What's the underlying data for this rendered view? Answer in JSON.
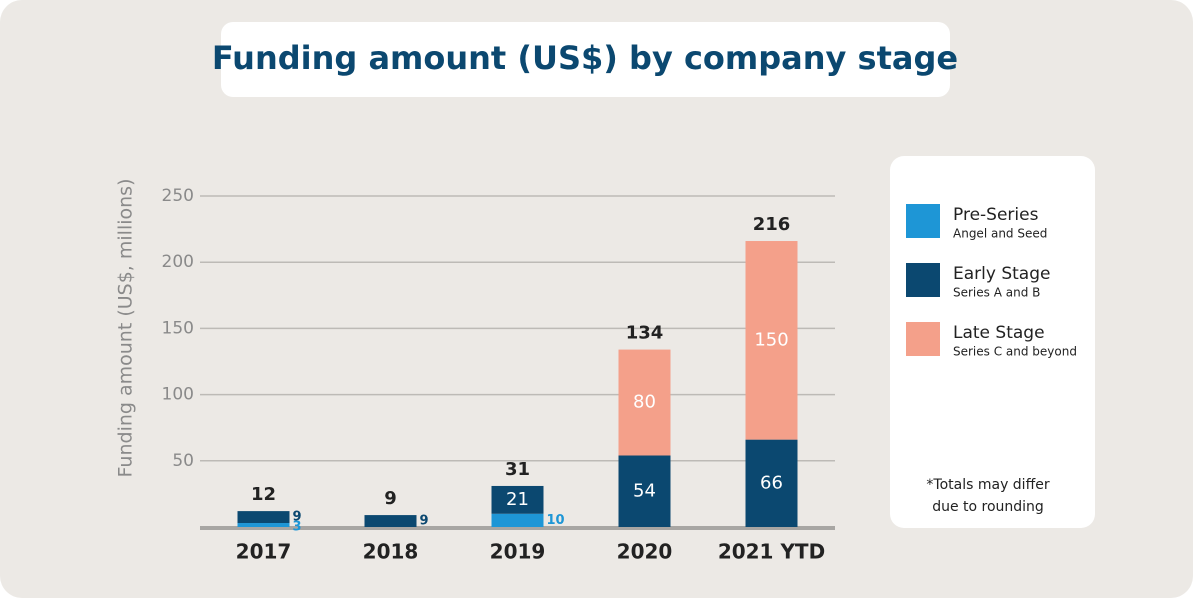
{
  "chart_data": {
    "type": "stacked_bar",
    "title": "Funding amount (US$) by company stage",
    "y_label": "Funding amount (US$, millions)",
    "categories": [
      "2017",
      "2018",
      "2019",
      "2020",
      "2021 YTD"
    ],
    "series": [
      {
        "name": "Pre-Series",
        "subtitle": "Angel and Seed",
        "color": "#1e96d6",
        "values": [
          3,
          null,
          10,
          null,
          null
        ]
      },
      {
        "name": "Early Stage",
        "subtitle": "Series A and B",
        "color": "#0b4870",
        "values": [
          9,
          9,
          21,
          54,
          66
        ]
      },
      {
        "name": "Late Stage",
        "subtitle": "Series C and beyond",
        "color": "#f4a08a",
        "values": [
          null,
          null,
          null,
          80,
          150
        ]
      }
    ],
    "totals": [
      12,
      9,
      31,
      134,
      216
    ],
    "ylim": [
      0,
      250
    ],
    "yticks": [
      50,
      100,
      150,
      200,
      250
    ],
    "grid": true,
    "note": "*Totals may differ due to rounding"
  }
}
